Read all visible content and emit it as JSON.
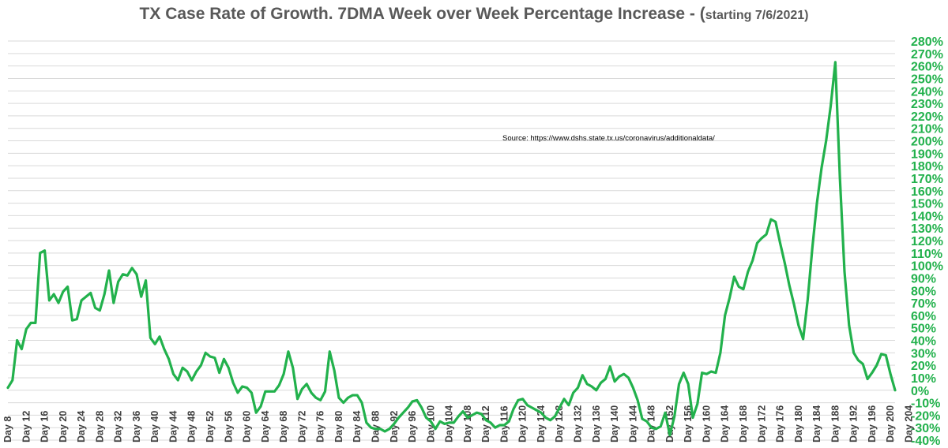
{
  "header": {
    "title_main": "TX Case Rate of Growth.  7DMA Week over Week Percentage Increase - (",
    "title_small": "starting 7/6/2021)"
  },
  "source_note": "Source:  https://www.dshs.state.tx.us/coronavirus/additionaldata/",
  "colors": {
    "line": "#22b14c",
    "grid": "#d9d9d9",
    "ytick_text": "#22b14c",
    "xtick_text": "#404040",
    "title_text": "#595959"
  },
  "chart_data": {
    "type": "line",
    "title": "TX Case Rate of Growth.  7DMA Week over Week Percentage Increase - (starting 7/6/2021)",
    "xlabel": "",
    "ylabel": "",
    "y_axis_position": "right",
    "grid": true,
    "legend": "none",
    "ylim": [
      -40,
      280
    ],
    "y_ticks": [
      -40,
      -30,
      -20,
      -10,
      0,
      10,
      20,
      30,
      40,
      50,
      60,
      70,
      80,
      90,
      100,
      110,
      120,
      130,
      140,
      150,
      160,
      170,
      180,
      190,
      200,
      210,
      220,
      230,
      240,
      250,
      260,
      270,
      280
    ],
    "y_tick_labels": [
      "-40%",
      "-30%",
      "-20%",
      "-10%",
      "0%",
      "10%",
      "20%",
      "30%",
      "40%",
      "50%",
      "60%",
      "70%",
      "80%",
      "90%",
      "100%",
      "110%",
      "120%",
      "130%",
      "140%",
      "150%",
      "160%",
      "170%",
      "180%",
      "190%",
      "200%",
      "210%",
      "220%",
      "230%",
      "240%",
      "250%",
      "260%",
      "270%",
      "280%"
    ],
    "x_tick_labels": [
      "Day 8",
      "Day 12",
      "Day 16",
      "Day 20",
      "Day 24",
      "Day 28",
      "Day 32",
      "Day 36",
      "Day 40",
      "Day 44",
      "Day 48",
      "Day 52",
      "Day 56",
      "Day 60",
      "Day 64",
      "Day 68",
      "Day 72",
      "Day 76",
      "Day 80",
      "Day 84",
      "Day 88",
      "Day 92",
      "Day 96",
      "Day 100",
      "Day 104",
      "Day 108",
      "Day 112",
      "Day 116",
      "Day 120",
      "Day 124",
      "Day 128",
      "Day 132",
      "Day 136",
      "Day 140",
      "Day 144",
      "Day 148",
      "Day 152",
      "Day 156",
      "Day 160",
      "Day 164",
      "Day 168",
      "Day 172",
      "Day 176",
      "Day 180",
      "Day 184",
      "Day 188",
      "Day 192",
      "Day 196",
      "Day 200",
      "Day 204"
    ],
    "x_start_day": 8,
    "series": [
      {
        "values": [
          2,
          8,
          40,
          33,
          49,
          54,
          54,
          110,
          112,
          72,
          77,
          70,
          79,
          83,
          56,
          57,
          72,
          75,
          78,
          66,
          64,
          77,
          96,
          70,
          87,
          93,
          92,
          98,
          93,
          75,
          88,
          42,
          37,
          43,
          33,
          25,
          13,
          8,
          18,
          15,
          8,
          15,
          20,
          30,
          27,
          26,
          14,
          25,
          18,
          6,
          -2,
          3,
          2,
          -2,
          -18,
          -13,
          -1,
          -1,
          -1,
          4,
          13,
          31,
          18,
          -7,
          1,
          5,
          -2,
          -6,
          -8,
          -1,
          31,
          16,
          -6,
          -10,
          -6,
          -4,
          -4,
          -10,
          -26,
          -30,
          -31,
          -31,
          -33,
          -31,
          -27,
          -22,
          -18,
          -14,
          -9,
          -8,
          -14,
          -22,
          -25,
          -31,
          -25,
          -27,
          -26,
          -26,
          -21,
          -17,
          -22,
          -20,
          -18,
          -19,
          -24,
          -26,
          -30,
          -28,
          -28,
          -25,
          -15,
          -8,
          -7,
          -12,
          -14,
          -16,
          -18,
          -22,
          -24,
          -21,
          -14,
          -7,
          -12,
          -2,
          2,
          12,
          5,
          3,
          0,
          6,
          9,
          19,
          7,
          11,
          13,
          10,
          2,
          -8,
          -23,
          -25,
          -30,
          -31,
          -29,
          -18,
          -36,
          -21,
          5,
          14,
          5,
          -22,
          -11,
          14,
          13,
          15,
          14,
          30,
          60,
          74,
          91,
          83,
          81,
          95,
          104,
          118,
          122,
          125,
          137,
          135,
          118,
          102,
          84,
          69,
          52,
          41,
          73,
          114,
          150,
          178,
          200,
          228,
          263,
          170,
          95,
          52,
          30,
          24,
          21,
          9,
          14,
          20,
          29,
          28,
          13,
          0
        ]
      }
    ]
  }
}
